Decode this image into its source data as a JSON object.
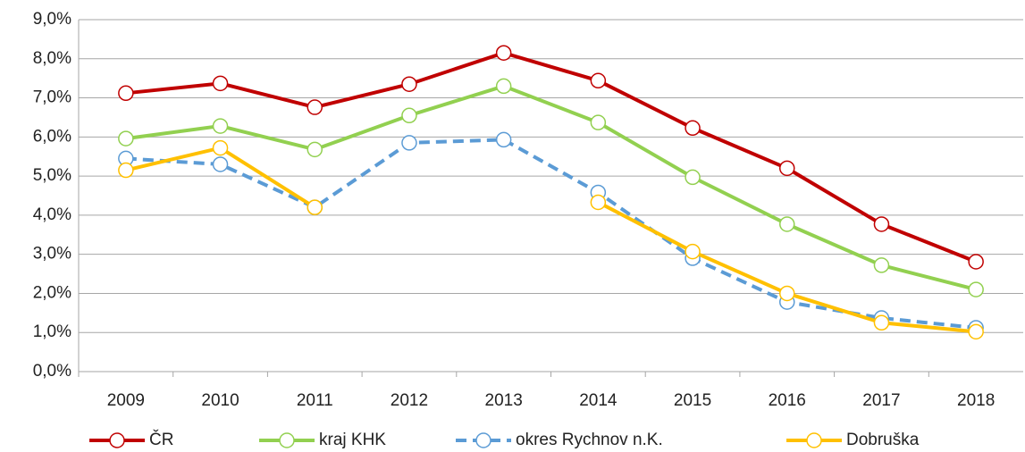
{
  "chart_data": {
    "type": "line",
    "categories": [
      "2009",
      "2010",
      "2011",
      "2012",
      "2013",
      "2014",
      "2015",
      "2016",
      "2017",
      "2018"
    ],
    "series": [
      {
        "name": "ČR",
        "color": "#c00000",
        "dashed": false,
        "values": [
          7.12,
          7.37,
          6.76,
          7.35,
          8.15,
          7.44,
          6.23,
          5.2,
          3.77,
          2.81
        ]
      },
      {
        "name": "kraj KHK",
        "color": "#92d050",
        "dashed": false,
        "values": [
          5.96,
          6.28,
          5.68,
          6.55,
          7.3,
          6.37,
          4.97,
          3.77,
          2.72,
          2.1
        ]
      },
      {
        "name": "okres Rychnov n.K.",
        "color": "#5b9bd5",
        "dashed": true,
        "values": [
          5.45,
          5.3,
          4.2,
          5.85,
          5.93,
          4.58,
          2.9,
          1.78,
          1.37,
          1.12
        ]
      },
      {
        "name": "Dobruška",
        "color": "#ffc000",
        "dashed": false,
        "values": [
          5.15,
          5.72,
          4.2,
          null,
          null,
          4.33,
          3.07,
          2.0,
          1.25,
          1.02
        ]
      }
    ],
    "ylim": [
      0,
      9
    ],
    "yticks": [
      {
        "value": 0,
        "label": "0,0%"
      },
      {
        "value": 1,
        "label": "1,0%"
      },
      {
        "value": 2,
        "label": "2,0%"
      },
      {
        "value": 3,
        "label": "3,0%"
      },
      {
        "value": 4,
        "label": "4,0%"
      },
      {
        "value": 5,
        "label": "5,0%"
      },
      {
        "value": 6,
        "label": "6,0%"
      },
      {
        "value": 7,
        "label": "7,0%"
      },
      {
        "value": 8,
        "label": "8,0%"
      },
      {
        "value": 9,
        "label": "9,0%"
      }
    ],
    "grid": true,
    "legend": "bottom"
  }
}
